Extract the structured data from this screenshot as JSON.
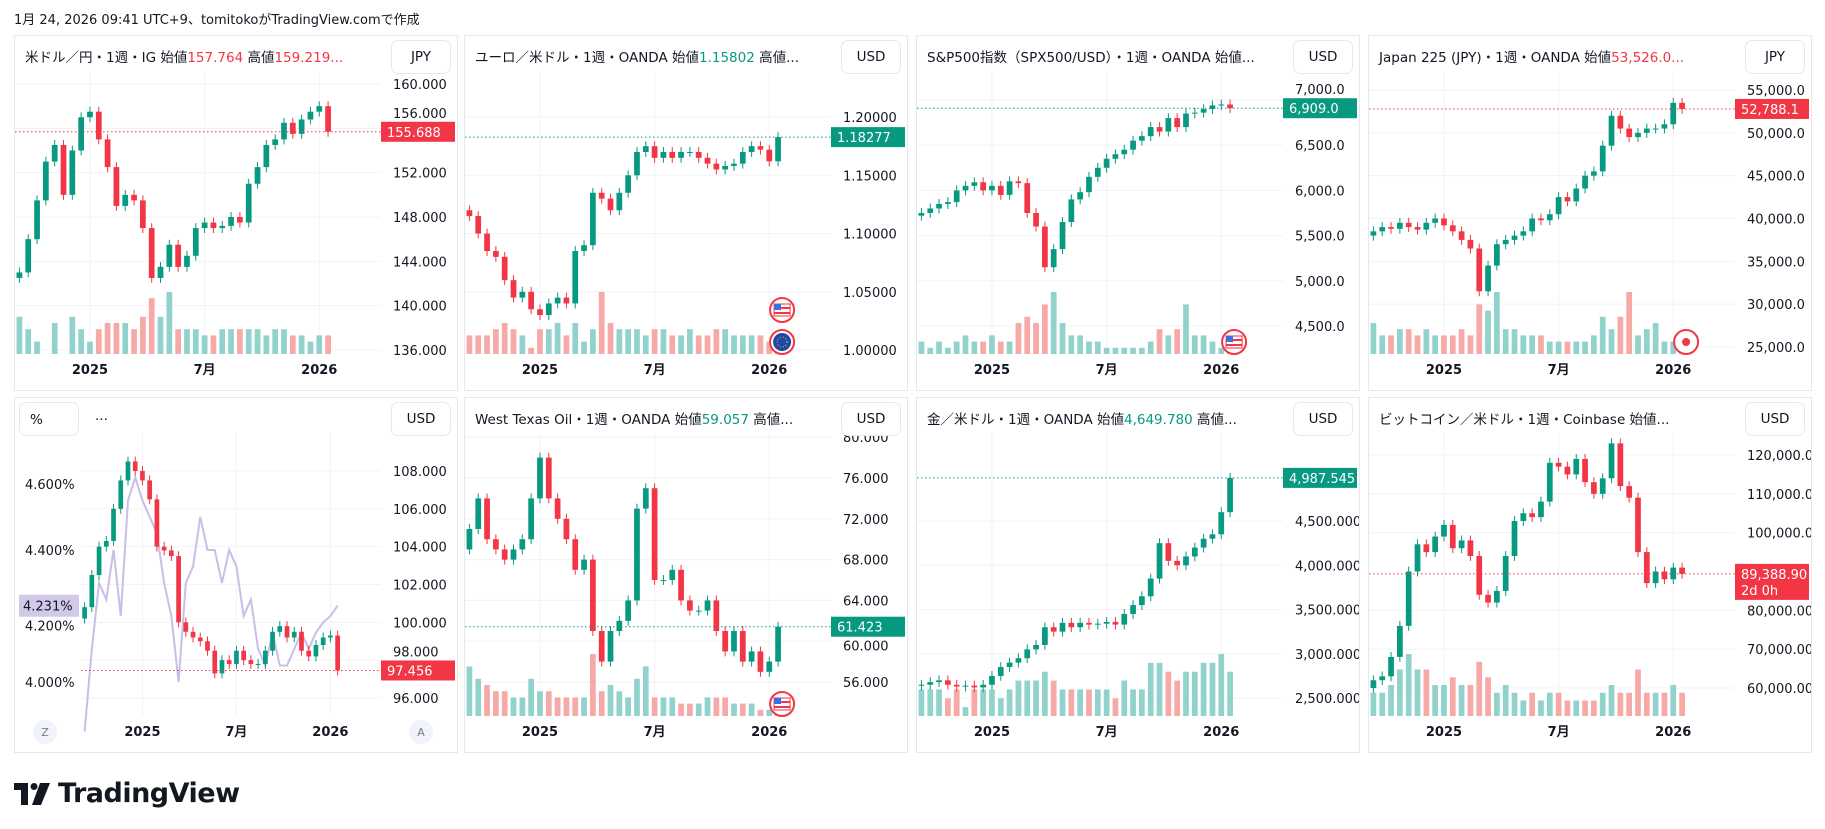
{
  "header": {
    "created": "1月 24, 2026 09:41 UTC+9、tomitokoがTradingView.comで作成"
  },
  "brand": {
    "logo_text": "TradingView"
  },
  "colors": {
    "up": "#089981",
    "down": "#f23645",
    "vol_up": "#92d2cc",
    "vol_down": "#f7a9a7",
    "overlay": "#c9bfe6",
    "grid": "#f0f3fa"
  },
  "time_axis": [
    {
      "label": "2025",
      "at": 8
    },
    {
      "label": "7月",
      "at": 21
    },
    {
      "label": "2026",
      "at": 34
    }
  ],
  "panels": [
    {
      "title": [
        {
          "t": "米ドル／円・1週・IG  始値"
        },
        {
          "t": "157.764",
          "c": "down"
        },
        {
          "t": "  高値"
        },
        {
          "t": "159.219...",
          "c": "down"
        }
      ],
      "currency": "JPY",
      "chart_data": {
        "type": "candlestick",
        "ylim": [
          135.64,
          160.36
        ],
        "yticks": [
          {
            "v": 160,
            "label": "160.000"
          },
          {
            "v": 156,
            "label": "156.000"
          },
          {
            "v": 152,
            "label": "152.000"
          },
          {
            "v": 148,
            "label": "148.000"
          },
          {
            "v": 144,
            "label": "144.000"
          },
          {
            "v": 140,
            "label": "140.000"
          },
          {
            "v": 136,
            "label": "136.000"
          }
        ],
        "first_open": 142.5,
        "close": [
          143,
          146,
          149.5,
          153,
          154.5,
          150,
          154,
          157,
          157.5,
          155,
          152.5,
          149,
          150,
          149.5,
          147,
          142.5,
          143.5,
          145.5,
          143.5,
          144.5,
          147,
          147.5,
          147,
          147.2,
          148,
          147.5,
          151,
          152.5,
          154.5,
          155,
          156.5,
          155.5,
          156.8,
          157.5,
          158,
          155.688
        ],
        "volume": [
          6,
          4,
          2,
          0,
          5,
          0,
          6,
          4,
          2,
          4,
          5,
          5,
          5,
          4,
          6,
          9,
          6,
          10,
          4,
          4,
          4,
          3,
          3,
          4,
          4,
          4,
          4,
          4,
          3,
          4,
          4,
          3,
          3,
          2,
          3,
          3
        ],
        "last": {
          "label": "155.688",
          "dir": "down"
        }
      },
      "flags": []
    },
    {
      "title": [
        {
          "t": "ユーロ／米ドル・1週・OANDA  始値"
        },
        {
          "t": "1.15802",
          "c": "up"
        },
        {
          "t": "  高値..."
        }
      ],
      "currency": "USD",
      "chart_data": {
        "type": "candlestick",
        "ylim": [
          0.9966,
          1.2318
        ],
        "yticks": [
          {
            "v": 1.2,
            "label": "1.20000"
          },
          {
            "v": 1.15,
            "label": "1.15000"
          },
          {
            "v": 1.1,
            "label": "1.10000"
          },
          {
            "v": 1.05,
            "label": "1.05000"
          },
          {
            "v": 1.0,
            "label": "1.00000"
          }
        ],
        "first_open": 1.12,
        "close": [
          1.115,
          1.1,
          1.085,
          1.08,
          1.06,
          1.045,
          1.05,
          1.035,
          1.03,
          1.04,
          1.045,
          1.04,
          1.085,
          1.09,
          1.135,
          1.13,
          1.12,
          1.135,
          1.15,
          1.17,
          1.175,
          1.165,
          1.17,
          1.165,
          1.17,
          1.17,
          1.165,
          1.16,
          1.155,
          1.158,
          1.16,
          1.17,
          1.175,
          1.172,
          1.162,
          1.18277
        ],
        "volume": [
          3,
          3,
          3,
          4,
          5,
          4,
          3,
          1,
          4,
          4,
          5,
          3,
          5,
          2,
          4,
          10,
          5,
          4,
          4,
          4,
          3,
          4,
          4,
          3,
          3,
          4,
          3,
          3,
          4,
          4,
          3,
          3,
          3,
          3,
          2,
          1
        ],
        "last": {
          "label": "1.18277",
          "dir": "up"
        }
      },
      "flags": [
        "us-flag",
        "eu-flag"
      ]
    },
    {
      "title": [
        {
          "t": "S&P500指数（SPX500/USD）・1週・OANDA  始値..."
        }
      ],
      "currency": "USD",
      "chart_data": {
        "type": "candlestick",
        "ylim": [
          4190,
          7221
        ],
        "yticks": [
          {
            "v": 7000,
            "label": "7,000.0"
          },
          {
            "v": 6500,
            "label": "6,500.0"
          },
          {
            "v": 6000,
            "label": "6,000.0"
          },
          {
            "v": 5500,
            "label": "5,500.0"
          },
          {
            "v": 5000,
            "label": "5,000.0"
          },
          {
            "v": 4500,
            "label": "4,500.0"
          }
        ],
        "first_open": 5720,
        "close": [
          5750,
          5800,
          5850,
          5870,
          6000,
          6050,
          6090,
          6000,
          6050,
          5950,
          6100,
          6080,
          5750,
          5600,
          5150,
          5350,
          5650,
          5900,
          5980,
          6150,
          6250,
          6350,
          6400,
          6450,
          6550,
          6600,
          6700,
          6650,
          6800,
          6700,
          6850,
          6860,
          6900,
          6940,
          6950,
          6909
        ],
        "volume": [
          2,
          1,
          2,
          1,
          2,
          3,
          2,
          2,
          3,
          2,
          2,
          5,
          6,
          5,
          8,
          10,
          5,
          3,
          3,
          2,
          2,
          1,
          1,
          1,
          1,
          1,
          2,
          4,
          3,
          4,
          8,
          3,
          3,
          2,
          1,
          1
        ],
        "last": {
          "label": "6,909.0",
          "dir": "up"
        }
      },
      "flags": [
        "us-flag"
      ]
    },
    {
      "title": [
        {
          "t": "Japan 225 (JPY)・1週・OANDA  始値"
        },
        {
          "t": "53,526.0...",
          "c": "down"
        }
      ],
      "currency": "JPY",
      "chart_data": {
        "type": "candlestick",
        "ylim": [
          24183,
          56167
        ],
        "yticks": [
          {
            "v": 55000,
            "label": "55,000.0"
          },
          {
            "v": 50000,
            "label": "50,000.0"
          },
          {
            "v": 45000,
            "label": "45,000.0"
          },
          {
            "v": 40000,
            "label": "40,000.0"
          },
          {
            "v": 35000,
            "label": "35,000.0"
          },
          {
            "v": 30000,
            "label": "30,000.0"
          },
          {
            "v": 25000,
            "label": "25,000.0"
          }
        ],
        "first_open": 38000,
        "close": [
          38500,
          39000,
          38800,
          39500,
          39000,
          38700,
          39500,
          40000,
          39200,
          38500,
          37500,
          36500,
          31500,
          34500,
          37000,
          37500,
          38000,
          38500,
          40000,
          39800,
          40500,
          42500,
          42000,
          43500,
          45000,
          45500,
          48500,
          52000,
          50500,
          49500,
          50000,
          50500,
          50500,
          51000,
          53500,
          52788.1
        ],
        "volume": [
          5,
          3,
          3,
          4,
          4,
          3,
          4,
          3,
          3,
          3,
          4,
          3,
          8,
          7,
          10,
          4,
          4,
          3,
          3,
          3,
          2,
          2,
          2,
          2,
          2,
          3,
          6,
          4,
          6,
          10,
          3,
          4,
          5,
          2,
          2,
          1
        ],
        "last": {
          "label": "52,788.1",
          "dir": "down"
        }
      },
      "flags": [
        "jp-flag"
      ]
    },
    {
      "pct_button": "%",
      "title": [
        {
          "t": "..."
        }
      ],
      "currency": "USD",
      "chart_data": {
        "type": "candlestick",
        "ylim": [
          95.05,
          109.53
        ],
        "yticks": [
          {
            "v": 108,
            "label": "108.000"
          },
          {
            "v": 106,
            "label": "106.000"
          },
          {
            "v": 104,
            "label": "104.000"
          },
          {
            "v": 102,
            "label": "102.000"
          },
          {
            "v": 100,
            "label": "100.000"
          },
          {
            "v": 98,
            "label": "98.000"
          },
          {
            "v": 96,
            "label": "96.000"
          }
        ],
        "first_open": 100.2,
        "close": [
          100.8,
          102.5,
          104,
          104.3,
          106,
          107.5,
          108.5,
          108,
          107.5,
          106.5,
          104,
          103.8,
          103.5,
          100,
          99.5,
          99.2,
          99,
          98.5,
          97.3,
          98,
          97.8,
          98.5,
          98,
          97.8,
          97.8,
          98.5,
          99.5,
          99.8,
          99.2,
          99.5,
          98.5,
          98.2,
          98.8,
          99.2,
          99.3,
          97.456
        ],
        "last": {
          "label": "97.456",
          "dir": "down"
        },
        "overlay": {
          "ylim": [
            3.897,
            4.727
          ],
          "yticks": [
            {
              "v": 4.6,
              "label": "4.600%"
            },
            {
              "v": 4.4,
              "label": "4.400%"
            },
            {
              "v": 4.2,
              "label": "4.200%"
            },
            {
              "v": 4.0,
              "label": "4.000%"
            }
          ],
          "values": [
            3.85,
            4.1,
            4.3,
            4.25,
            4.4,
            4.2,
            4.55,
            4.62,
            4.55,
            4.5,
            4.45,
            4.3,
            4.2,
            4.0,
            4.3,
            4.35,
            4.5,
            4.4,
            4.4,
            4.3,
            4.4,
            4.35,
            4.2,
            4.25,
            4.1,
            4.05,
            4.15,
            4.05,
            4.05,
            4.1,
            4.15,
            4.1,
            4.15,
            4.18,
            4.2,
            4.231
          ],
          "last": {
            "label": "4.231%"
          }
        }
      },
      "scale_buttons": {
        "left": "Z",
        "right": "A"
      },
      "flags": []
    },
    {
      "title": [
        {
          "t": "West Texas Oil・1週・OANDA  始値"
        },
        {
          "t": "59.057",
          "c": "up"
        },
        {
          "t": "  高値..."
        }
      ],
      "currency": "USD",
      "chart_data": {
        "type": "candlestick",
        "ylim": [
          52.67,
          79.53
        ],
        "yticks": [
          {
            "v": 80,
            "label": "80.000"
          },
          {
            "v": 76,
            "label": "76.000"
          },
          {
            "v": 72,
            "label": "72.000"
          },
          {
            "v": 68,
            "label": "68.000"
          },
          {
            "v": 64,
            "label": "64.000"
          },
          {
            "v": 60,
            "label": "60.000"
          },
          {
            "v": 56,
            "label": "56.000"
          }
        ],
        "first_open": 69,
        "close": [
          71,
          74,
          70,
          69,
          68,
          69,
          70,
          74,
          78,
          74,
          72,
          70,
          67,
          68,
          61,
          58,
          61,
          62,
          64,
          73,
          75,
          66,
          66,
          67,
          64,
          63,
          63,
          64,
          61,
          59,
          61,
          58,
          59,
          57,
          58,
          61.423
        ],
        "volume": [
          8,
          6,
          5,
          4,
          4,
          3,
          3,
          6,
          4,
          4,
          3,
          3,
          3,
          3,
          10,
          4,
          5,
          4,
          3,
          6,
          8,
          3,
          3,
          3,
          2,
          2,
          2,
          3,
          3,
          3,
          2,
          2,
          2,
          1,
          1,
          1
        ],
        "last": {
          "label": "61.423",
          "dir": "up"
        }
      },
      "flags": [
        "us-flag"
      ]
    },
    {
      "title": [
        {
          "t": "金／米ドル・1週・OANDA  始値"
        },
        {
          "t": "4,649.780",
          "c": "up"
        },
        {
          "t": "  高値..."
        }
      ],
      "currency": "USD",
      "chart_data": {
        "type": "candlestick",
        "ylim": [
          2297,
          5393
        ],
        "yticks": [
          {
            "v": 4500,
            "label": "4,500.000"
          },
          {
            "v": 4000,
            "label": "4,000.000"
          },
          {
            "v": 3500,
            "label": "3,500.000"
          },
          {
            "v": 3000,
            "label": "3,000.000"
          },
          {
            "v": 2500,
            "label": "2,500.000"
          }
        ],
        "first_open": 2640,
        "close": [
          2650,
          2680,
          2700,
          2650,
          2630,
          2640,
          2620,
          2650,
          2750,
          2850,
          2900,
          2950,
          3050,
          3100,
          3300,
          3250,
          3350,
          3300,
          3350,
          3330,
          3340,
          3360,
          3330,
          3450,
          3550,
          3650,
          3850,
          4250,
          4050,
          4000,
          4100,
          4200,
          4300,
          4350,
          4600,
          4987.545
        ],
        "volume": [
          3,
          3,
          3,
          2,
          3,
          1,
          3,
          3,
          3,
          2,
          3,
          4,
          4,
          4,
          5,
          4,
          3,
          3,
          3,
          3,
          3,
          3,
          2,
          4,
          3,
          3,
          6,
          6,
          5,
          4,
          5,
          5,
          6,
          6,
          7,
          5
        ],
        "last": {
          "label": "4,987.545",
          "dir": "up"
        }
      },
      "flags": []
    },
    {
      "title": [
        {
          "t": "ビットコイン／米ドル・1週・Coinbase  始値..."
        }
      ],
      "currency": "USD",
      "chart_data": {
        "type": "candlestick",
        "ylim": [
          52790,
          123348
        ],
        "yticks": [
          {
            "v": 120000,
            "label": "120,000.00"
          },
          {
            "v": 110000,
            "label": "110,000.00"
          },
          {
            "v": 100000,
            "label": "100,000.00"
          },
          {
            "v": 80000,
            "label": "80,000.00"
          },
          {
            "v": 70000,
            "label": "70,000.00"
          },
          {
            "v": 60000,
            "label": "60,000.00"
          }
        ],
        "first_open": 60000,
        "close": [
          62000,
          63000,
          68000,
          76000,
          90000,
          97000,
          95000,
          99000,
          102000,
          96000,
          98000,
          94000,
          84000,
          82000,
          85000,
          94000,
          103000,
          105000,
          104000,
          108000,
          118000,
          117000,
          115000,
          119000,
          113000,
          110000,
          114000,
          123000,
          112000,
          109000,
          95000,
          87000,
          90000,
          88000,
          91000,
          89388.9
        ],
        "volume": [
          3,
          3,
          4,
          6,
          8,
          6,
          6,
          4,
          4,
          5,
          4,
          4,
          7,
          5,
          3,
          4,
          3,
          2,
          3,
          2,
          3,
          3,
          2,
          2,
          2,
          2,
          3,
          4,
          3,
          3,
          6,
          3,
          3,
          3,
          4,
          3
        ],
        "last": {
          "label": "89,388.90",
          "sub": "2d 0h",
          "dir": "down"
        }
      },
      "flags": []
    }
  ]
}
